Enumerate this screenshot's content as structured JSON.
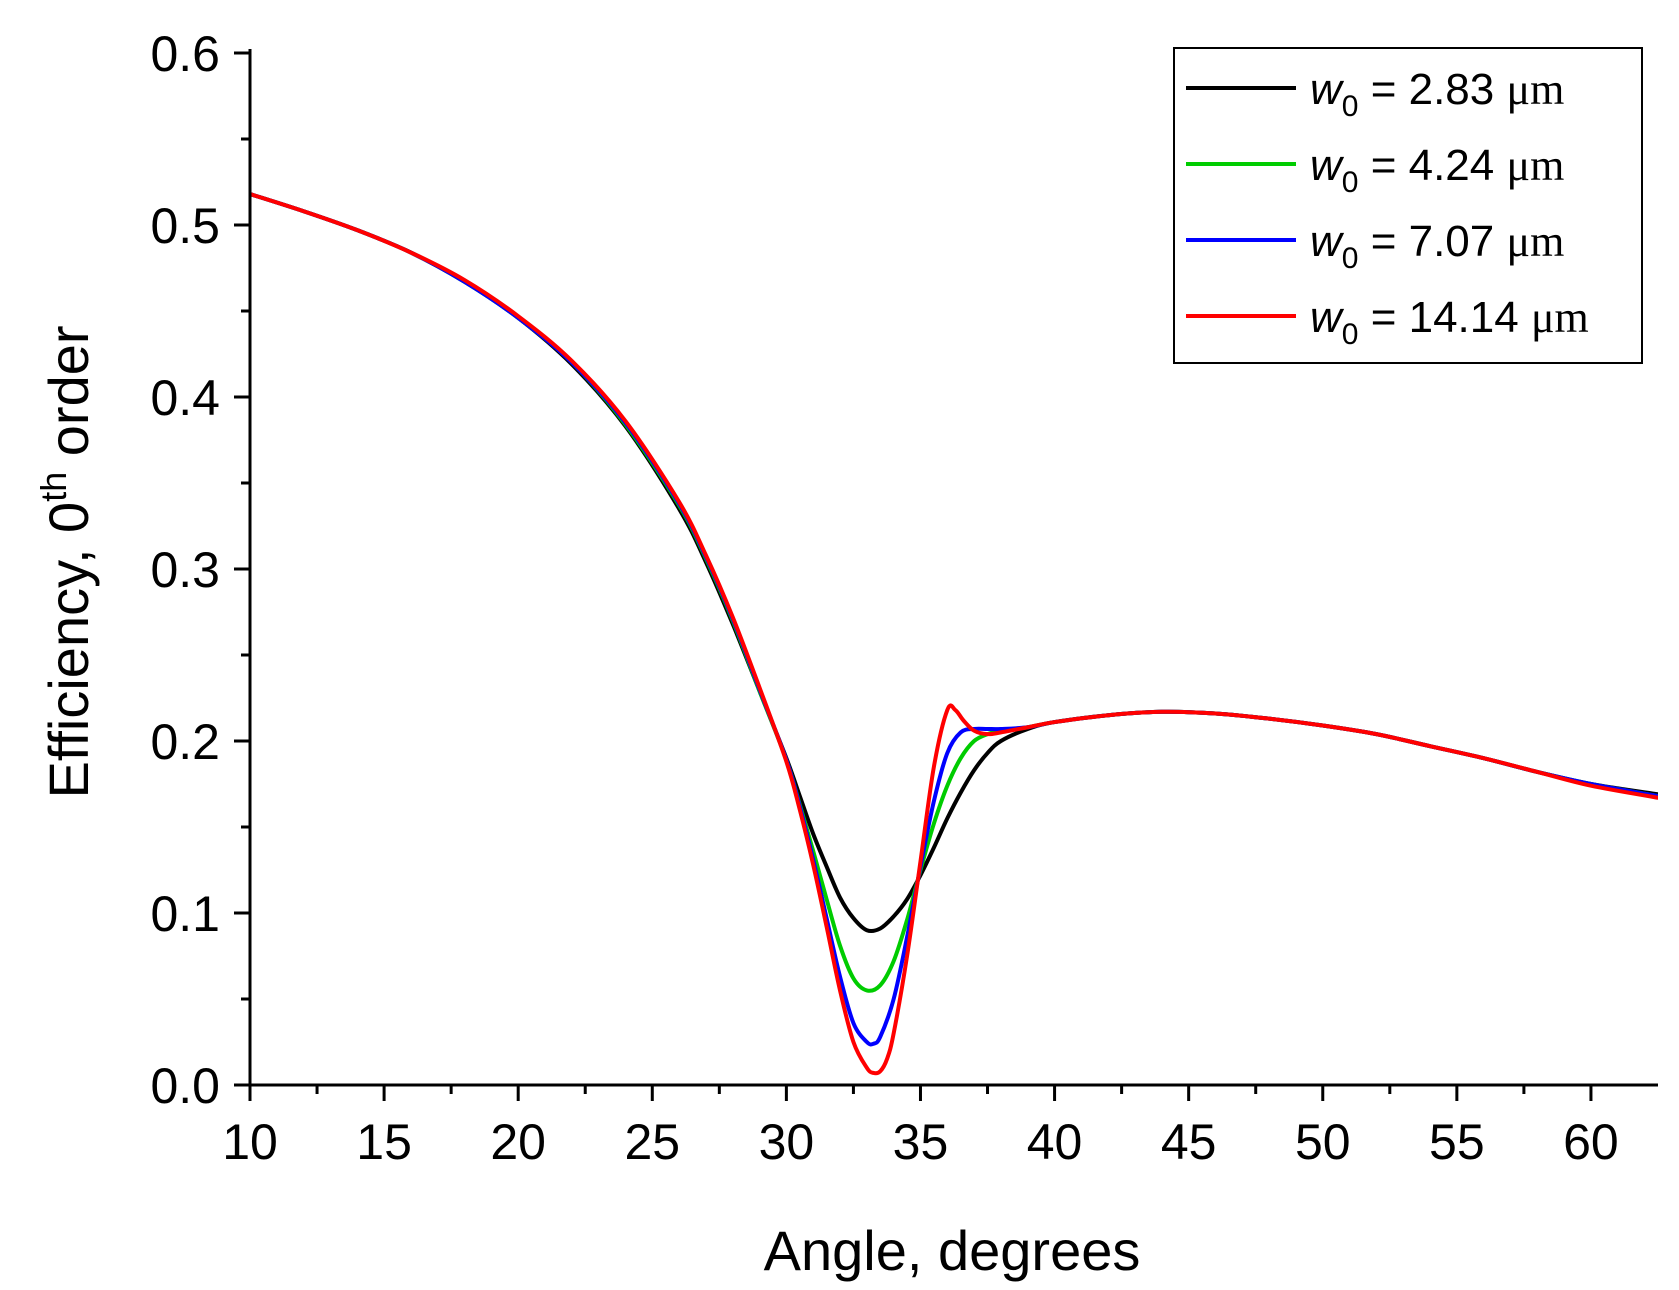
{
  "chart_data": {
    "type": "line",
    "title": "",
    "xlabel": "Angle, degrees",
    "ylabel": {
      "prefix": "Efficiency, 0",
      "superscript": "th",
      "suffix": " order"
    },
    "xlim": [
      10,
      62.5
    ],
    "ylim": [
      0,
      0.6
    ],
    "x_major_ticks": [
      10,
      15,
      20,
      25,
      30,
      35,
      40,
      45,
      50,
      55,
      60
    ],
    "x_tick_labels": [
      "10",
      "15",
      "20",
      "25",
      "30",
      "35",
      "40",
      "45",
      "50",
      "55",
      "60"
    ],
    "y_major_ticks": [
      0,
      0.1,
      0.2,
      0.3,
      0.4,
      0.5,
      0.6
    ],
    "y_tick_labels": [
      "0.0",
      "0.1",
      "0.2",
      "0.3",
      "0.4",
      "0.5",
      "0.6"
    ],
    "grid": false,
    "legend_position": "top-right",
    "series": [
      {
        "name": "w0 = 2.83 μm",
        "symbol": "w",
        "subscript": "0",
        "label_value": " = 2.83 ",
        "unit": "μm",
        "color": "#000000",
        "x": [
          10,
          12,
          14,
          16,
          18,
          20,
          22,
          24,
          26,
          27,
          28,
          29,
          30,
          30.5,
          31,
          31.5,
          32,
          32.5,
          33,
          33.5,
          34,
          34.5,
          35,
          35.5,
          36,
          36.5,
          37,
          37.5,
          38,
          39,
          40,
          42,
          44,
          46,
          48,
          50,
          52,
          54,
          56,
          58,
          60,
          62.5
        ],
        "y": [
          0.518,
          0.508,
          0.497,
          0.484,
          0.467,
          0.446,
          0.419,
          0.383,
          0.335,
          0.304,
          0.268,
          0.229,
          0.19,
          0.168,
          0.146,
          0.127,
          0.109,
          0.097,
          0.09,
          0.091,
          0.098,
          0.108,
          0.122,
          0.138,
          0.155,
          0.17,
          0.183,
          0.193,
          0.2,
          0.207,
          0.211,
          0.215,
          0.217,
          0.216,
          0.213,
          0.209,
          0.204,
          0.197,
          0.19,
          0.182,
          0.175,
          0.169
        ]
      },
      {
        "name": "w0 = 4.24 μm",
        "symbol": "w",
        "subscript": "0",
        "label_value": " = 4.24 ",
        "unit": "μm",
        "color": "#00cc00",
        "x": [
          10,
          12,
          14,
          16,
          18,
          20,
          22,
          24,
          26,
          27,
          28,
          29,
          30,
          30.5,
          31,
          31.5,
          32,
          32.5,
          33,
          33.5,
          34,
          34.5,
          35,
          35.5,
          36,
          36.5,
          37,
          37.5,
          38,
          39,
          40,
          42,
          44,
          46,
          48,
          50,
          52,
          54,
          56,
          58,
          60,
          62.5
        ],
        "y": [
          0.518,
          0.508,
          0.497,
          0.484,
          0.467,
          0.446,
          0.42,
          0.384,
          0.337,
          0.306,
          0.27,
          0.229,
          0.189,
          0.163,
          0.136,
          0.108,
          0.081,
          0.062,
          0.055,
          0.058,
          0.072,
          0.096,
          0.125,
          0.152,
          0.174,
          0.19,
          0.2,
          0.204,
          0.206,
          0.208,
          0.211,
          0.215,
          0.217,
          0.216,
          0.213,
          0.209,
          0.204,
          0.197,
          0.19,
          0.182,
          0.175,
          0.168
        ]
      },
      {
        "name": "w0 = 7.07 μm",
        "symbol": "w",
        "subscript": "0",
        "label_value": " = 7.07 ",
        "unit": "μm",
        "color": "#0000ff",
        "x": [
          10,
          12,
          14,
          16,
          18,
          20,
          22,
          24,
          26,
          27,
          28,
          29,
          30,
          30.5,
          31,
          31.5,
          32,
          32.5,
          33,
          33.25,
          33.5,
          34,
          34.5,
          35,
          35.5,
          36,
          36.5,
          37,
          37.5,
          38,
          39,
          40,
          42,
          44,
          46,
          48,
          50,
          52,
          54,
          56,
          58,
          60,
          62.5
        ],
        "y": [
          0.518,
          0.508,
          0.497,
          0.484,
          0.467,
          0.446,
          0.42,
          0.385,
          0.338,
          0.307,
          0.271,
          0.23,
          0.189,
          0.162,
          0.131,
          0.097,
          0.063,
          0.036,
          0.025,
          0.024,
          0.028,
          0.05,
          0.086,
          0.127,
          0.165,
          0.193,
          0.205,
          0.207,
          0.207,
          0.207,
          0.208,
          0.211,
          0.215,
          0.217,
          0.216,
          0.213,
          0.209,
          0.204,
          0.197,
          0.19,
          0.182,
          0.175,
          0.168
        ]
      },
      {
        "name": "w0 = 14.14 μm",
        "symbol": "w",
        "subscript": "0",
        "label_value": " = 14.14 ",
        "unit": "μm",
        "color": "#ff0000",
        "x": [
          10,
          12,
          14,
          16,
          18,
          20,
          22,
          24,
          26,
          27,
          28,
          29,
          30,
          30.5,
          31,
          31.5,
          32,
          32.5,
          33,
          33.25,
          33.5,
          33.75,
          34,
          34.5,
          35,
          35.5,
          36,
          36.3,
          36.6,
          37,
          37.5,
          38,
          39,
          40,
          42,
          44,
          46,
          48,
          50,
          52,
          54,
          56,
          58,
          60,
          62.5
        ],
        "y": [
          0.518,
          0.508,
          0.497,
          0.484,
          0.468,
          0.447,
          0.421,
          0.386,
          0.339,
          0.308,
          0.272,
          0.231,
          0.188,
          0.16,
          0.128,
          0.092,
          0.055,
          0.025,
          0.01,
          0.007,
          0.008,
          0.015,
          0.03,
          0.075,
          0.13,
          0.185,
          0.218,
          0.218,
          0.212,
          0.206,
          0.204,
          0.205,
          0.208,
          0.211,
          0.215,
          0.217,
          0.216,
          0.213,
          0.209,
          0.204,
          0.197,
          0.19,
          0.182,
          0.174,
          0.167
        ]
      }
    ]
  }
}
